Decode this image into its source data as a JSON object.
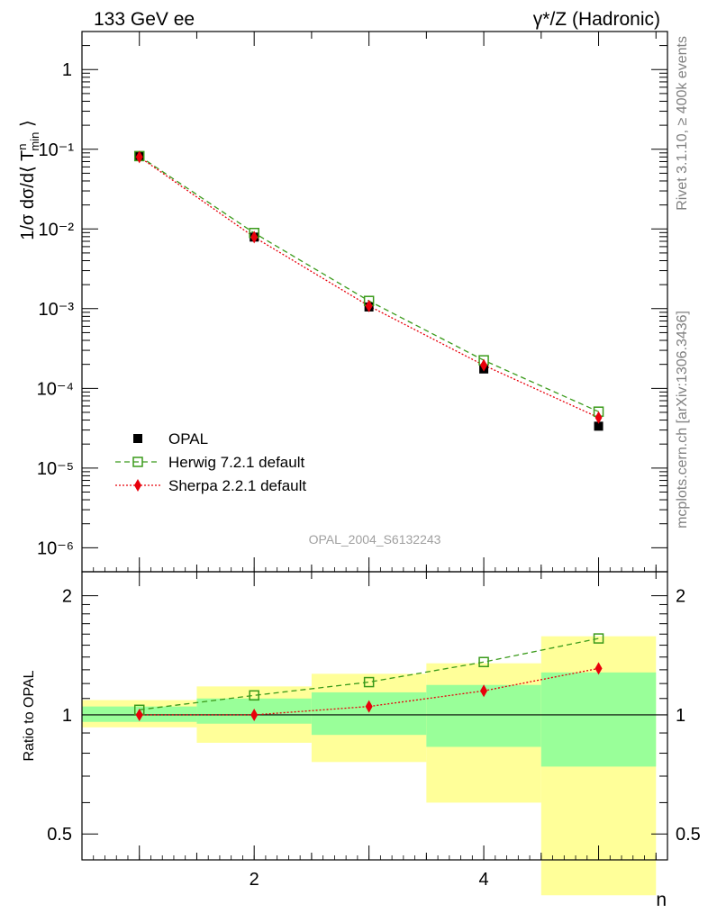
{
  "header": {
    "left": "133 GeV ee",
    "right": "γ*/Z (Hadronic)"
  },
  "side_labels": {
    "rivet": "Rivet 3.1.10, ≥ 400k events",
    "mcplots": "mcplots.cern.ch [arXiv:1306.3436]"
  },
  "watermark": "OPAL_2004_S6132243",
  "chart_data": [
    {
      "type": "scatter",
      "panel": "main",
      "ylabel": "1/σ dσ/d⟨ Tⁿmin ⟩",
      "yscale": "log",
      "ylim": [
        5e-07,
        3.0
      ],
      "xlim": [
        0.5,
        5.6
      ],
      "yticks": [
        "10⁻⁶",
        "10⁻⁵",
        "10⁻⁴",
        "10⁻³",
        "10⁻²",
        "10⁻¹",
        "1"
      ],
      "legend_position": "bottom-left",
      "x": [
        1,
        2,
        3,
        4,
        5
      ],
      "series": [
        {
          "name": "OPAL",
          "color": "#000000",
          "marker": "square-filled",
          "line": "none",
          "values": [
            0.081,
            0.0079,
            0.00105,
            0.000175,
            3.35e-05
          ]
        },
        {
          "name": "Herwig 7.2.1 default",
          "color": "#3a9a1a",
          "marker": "square-open",
          "line": "dashed",
          "values": [
            0.082,
            0.0089,
            0.00125,
            0.000225,
            5.1e-05
          ]
        },
        {
          "name": "Sherpa 2.2.1 default",
          "color": "#e8000b",
          "marker": "diamond",
          "line": "dotted",
          "values": [
            0.08,
            0.0079,
            0.00108,
            0.000195,
            4.3e-05
          ]
        }
      ]
    },
    {
      "type": "line",
      "panel": "ratio",
      "ylabel": "Ratio to OPAL",
      "xlabel": "n",
      "yscale": "log",
      "ylim": [
        0.43,
        2.3
      ],
      "xlim": [
        0.5,
        5.6
      ],
      "yticks": [
        "0.5",
        "1",
        "2"
      ],
      "xticks": [
        "2",
        "4"
      ],
      "reference_line": 1,
      "uncertainty_bands": [
        {
          "xlow": 0.5,
          "xhigh": 1.5,
          "inner": [
            0.96,
            1.05
          ],
          "outer": [
            0.93,
            1.09
          ]
        },
        {
          "xlow": 1.5,
          "xhigh": 2.5,
          "inner": [
            0.95,
            1.1
          ],
          "outer": [
            0.85,
            1.18
          ]
        },
        {
          "xlow": 2.5,
          "xhigh": 3.5,
          "inner": [
            0.89,
            1.14
          ],
          "outer": [
            0.76,
            1.27
          ]
        },
        {
          "xlow": 3.5,
          "xhigh": 4.5,
          "inner": [
            0.83,
            1.19
          ],
          "outer": [
            0.6,
            1.35
          ]
        },
        {
          "xlow": 4.5,
          "xhigh": 5.5,
          "inner": [
            0.74,
            1.28
          ],
          "outer": [
            0.35,
            1.58
          ]
        }
      ],
      "x": [
        1,
        2,
        3,
        4,
        5
      ],
      "series": [
        {
          "name": "Herwig 7.2.1 default",
          "color": "#3a9a1a",
          "marker": "square-open",
          "line": "dashed",
          "values": [
            1.03,
            1.12,
            1.21,
            1.36,
            1.56
          ]
        },
        {
          "name": "Sherpa 2.2.1 default",
          "color": "#e8000b",
          "marker": "diamond",
          "line": "dotted",
          "values": [
            1.0,
            1.0,
            1.05,
            1.15,
            1.31
          ]
        }
      ]
    }
  ],
  "colors": {
    "band_inner": "#99ff99",
    "band_outer": "#ffff99",
    "axis": "#000000",
    "side_text": "#808080"
  }
}
